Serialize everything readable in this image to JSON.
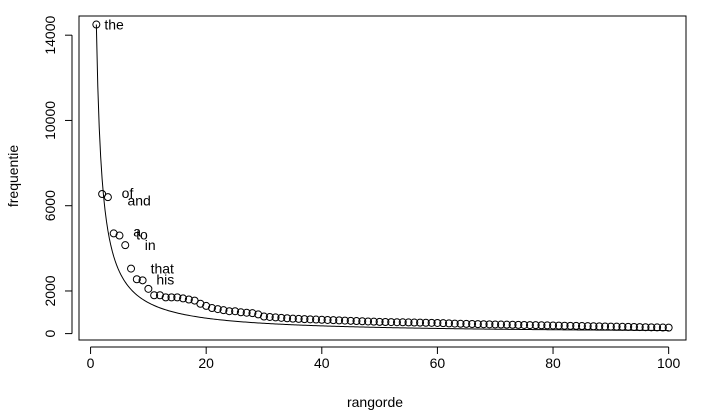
{
  "chart_data": {
    "type": "scatter",
    "title": "",
    "xlabel": "rangorde",
    "ylabel": "frequentie",
    "xlim": [
      -2,
      103
    ],
    "ylim": [
      -300,
      14900
    ],
    "xticks": [
      0,
      20,
      40,
      60,
      80,
      100
    ],
    "yticks": [
      0,
      2000,
      6000,
      10000,
      14000
    ],
    "grid": false,
    "legend": "none",
    "series": [
      {
        "kind": "points",
        "x": [
          1,
          2,
          3,
          4,
          5,
          6,
          7,
          8,
          9,
          10,
          11,
          12,
          13,
          14,
          15,
          16,
          17,
          18,
          19,
          20,
          21,
          22,
          23,
          24,
          25,
          26,
          27,
          28,
          29,
          30,
          31,
          32,
          33,
          34,
          35,
          36,
          37,
          38,
          39,
          40,
          41,
          42,
          43,
          44,
          45,
          46,
          47,
          48,
          49,
          50,
          51,
          52,
          53,
          54,
          55,
          56,
          57,
          58,
          59,
          60,
          61,
          62,
          63,
          64,
          65,
          66,
          67,
          68,
          69,
          70,
          71,
          72,
          73,
          74,
          75,
          76,
          77,
          78,
          79,
          80,
          81,
          82,
          83,
          84,
          85,
          86,
          87,
          88,
          89,
          90,
          91,
          92,
          93,
          94,
          95,
          96,
          97,
          98,
          99,
          100
        ],
        "y": [
          14500,
          6550,
          6400,
          4700,
          4600,
          4150,
          3050,
          2550,
          2500,
          2100,
          1800,
          1800,
          1700,
          1700,
          1700,
          1650,
          1600,
          1550,
          1400,
          1300,
          1200,
          1150,
          1100,
          1050,
          1050,
          1000,
          980,
          960,
          900,
          800,
          780,
          760,
          740,
          720,
          700,
          690,
          680,
          670,
          660,
          650,
          640,
          630,
          620,
          610,
          600,
          590,
          580,
          570,
          560,
          550,
          545,
          540,
          535,
          530,
          525,
          520,
          515,
          510,
          505,
          500,
          490,
          480,
          470,
          460,
          455,
          450,
          445,
          440,
          435,
          430,
          425,
          420,
          415,
          410,
          405,
          400,
          395,
          390,
          385,
          380,
          375,
          370,
          365,
          360,
          355,
          350,
          345,
          340,
          335,
          330,
          325,
          320,
          315,
          310,
          305,
          300,
          295,
          290,
          285,
          280
        ]
      },
      {
        "kind": "line",
        "formula_constant": 14500
      }
    ],
    "annotations": [
      {
        "text": "the",
        "x": 1,
        "y": 14500
      },
      {
        "text": "of",
        "x": 4,
        "y": 6600
      },
      {
        "text": "and",
        "x": 5,
        "y": 6250
      },
      {
        "text": "a",
        "x": 6,
        "y": 4800
      },
      {
        "text": "to",
        "x": 6.5,
        "y": 4650
      },
      {
        "text": "in",
        "x": 8,
        "y": 4150
      },
      {
        "text": "that",
        "x": 9,
        "y": 3050
      },
      {
        "text": "his",
        "x": 10,
        "y": 2550
      }
    ]
  }
}
